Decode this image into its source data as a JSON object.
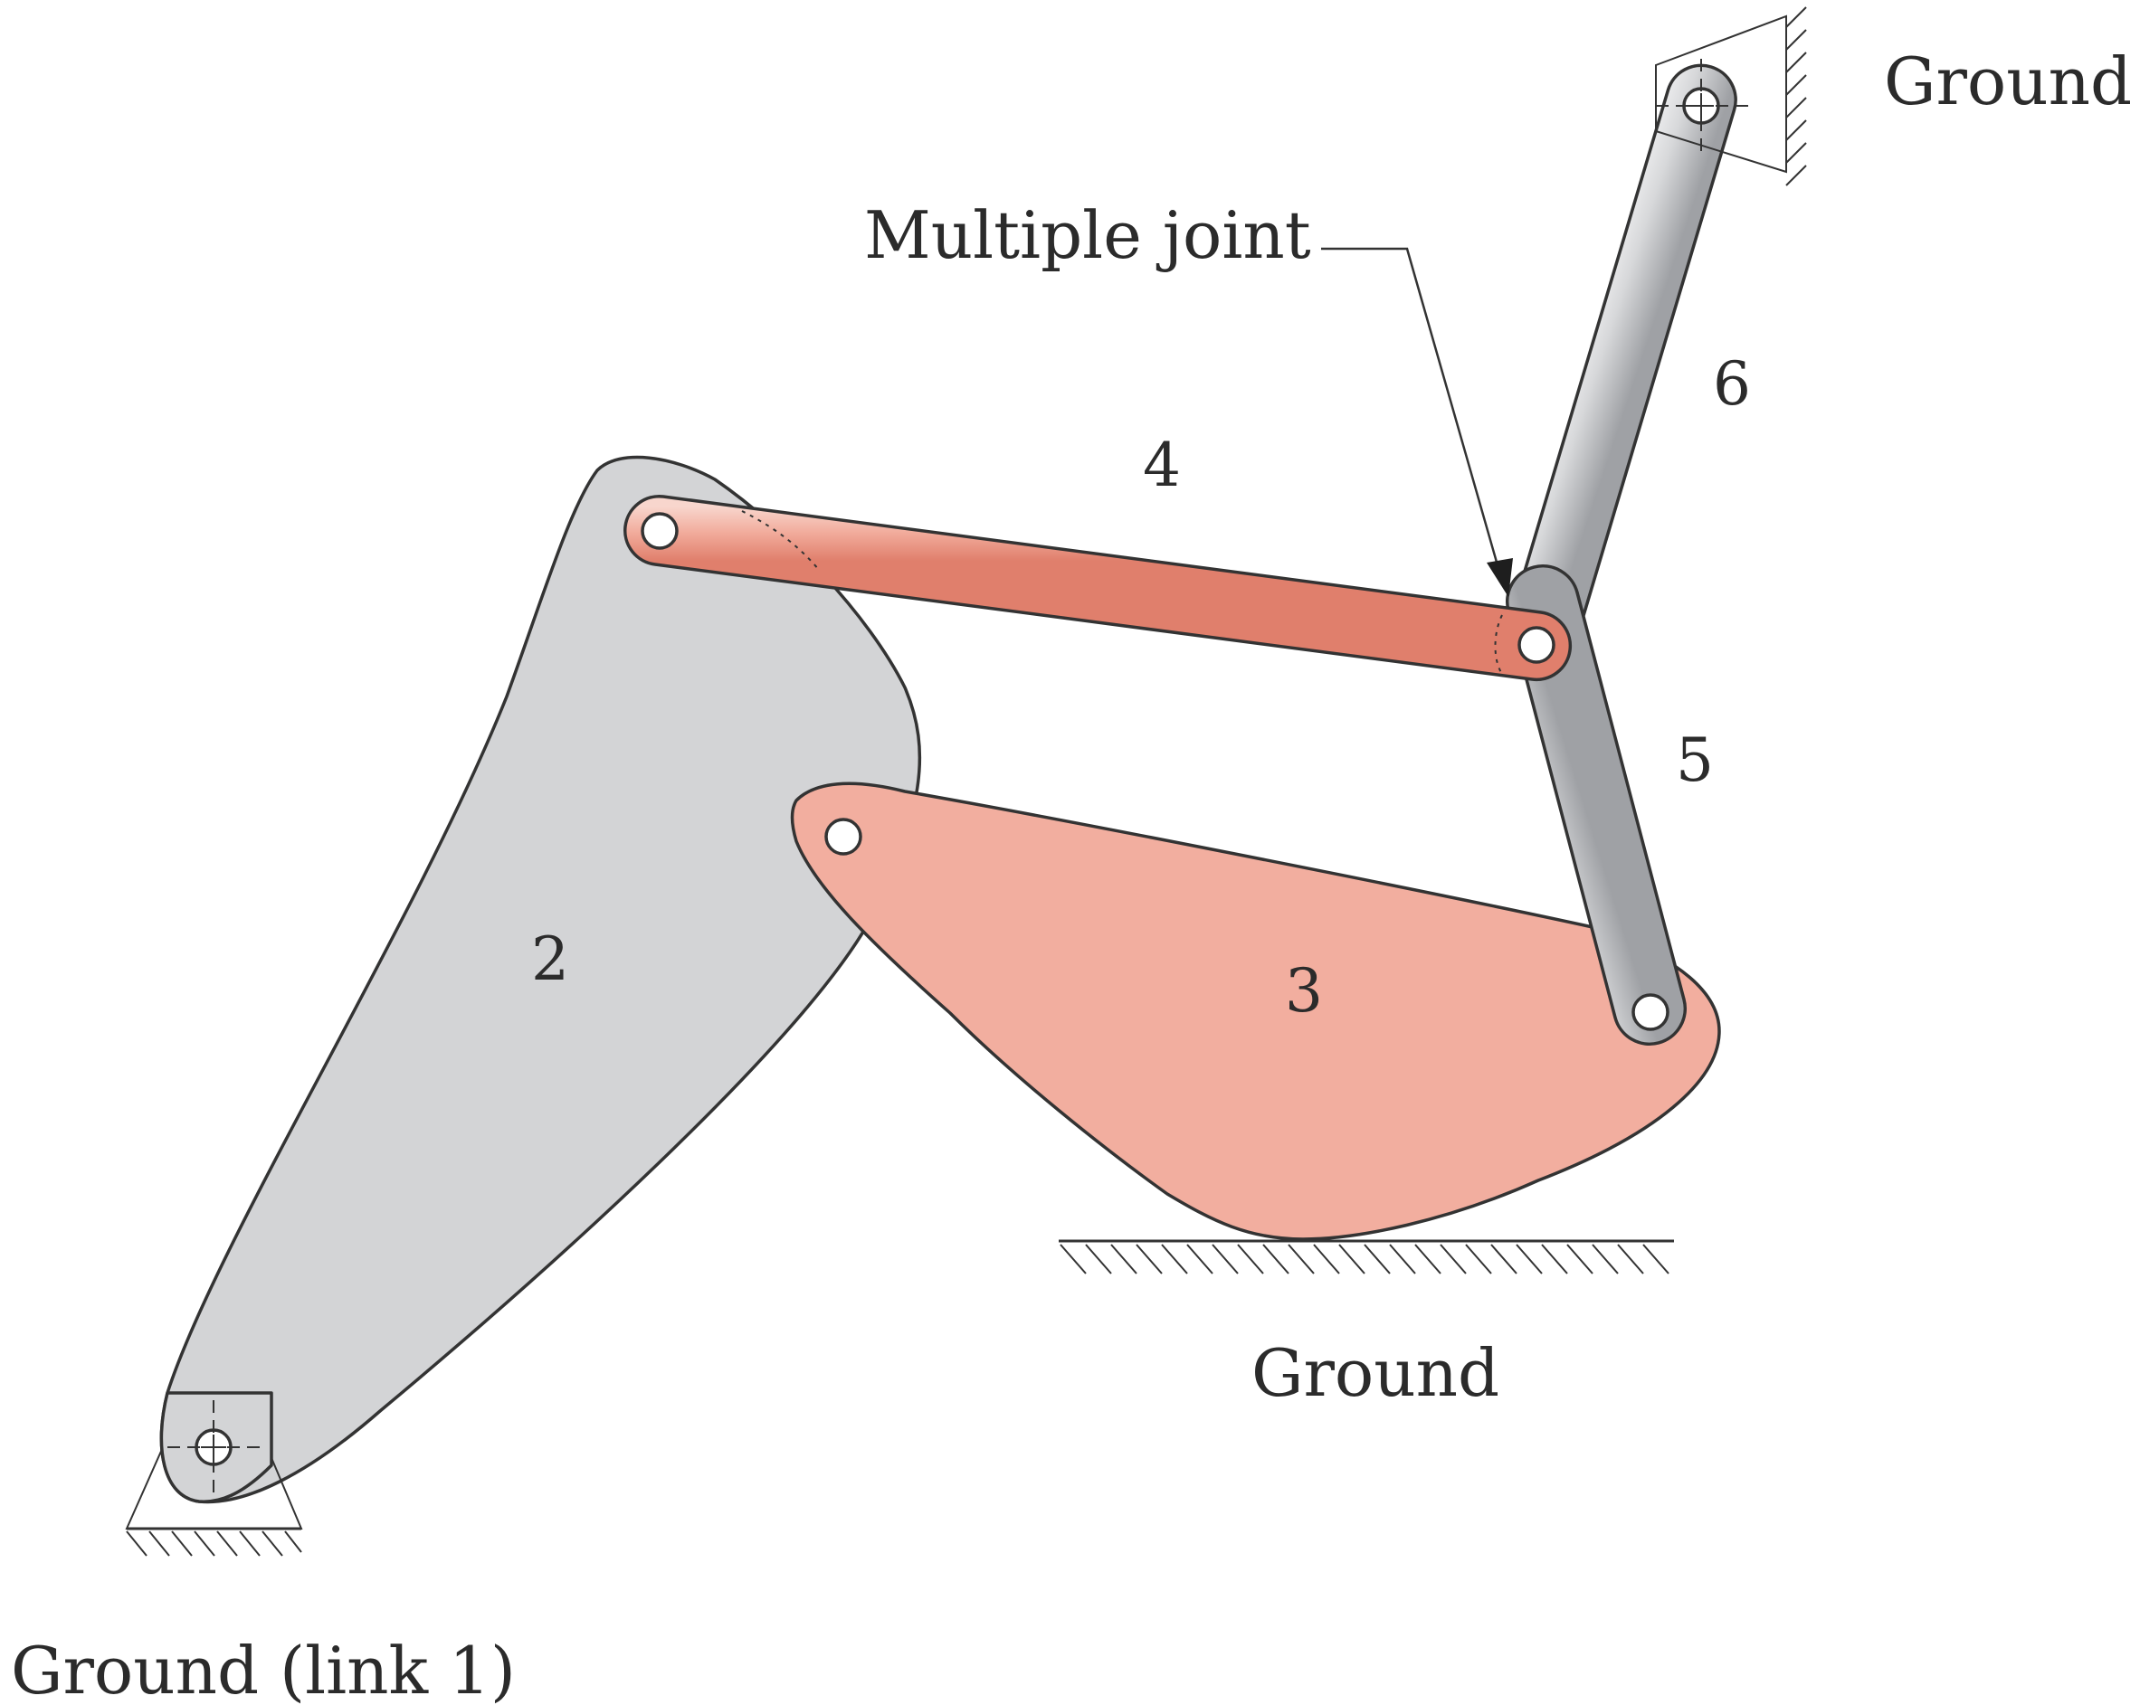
{
  "labels": {
    "ground_top_right": "Ground",
    "ground_bottom": "Ground",
    "ground_link1": "Ground  (link 1)",
    "multiple_joint": "Multiple joint"
  },
  "links": {
    "link2": "2",
    "link3": "3",
    "link4": "4",
    "link5": "5",
    "link6": "6"
  },
  "colors": {
    "link2_fill": "#d3d4d6",
    "link3_fill": "#f2ae9f",
    "link4_fill": "#f0a898",
    "link_steel": "#c9cacd",
    "outline": "#333333",
    "text": "#2b2b2b"
  }
}
